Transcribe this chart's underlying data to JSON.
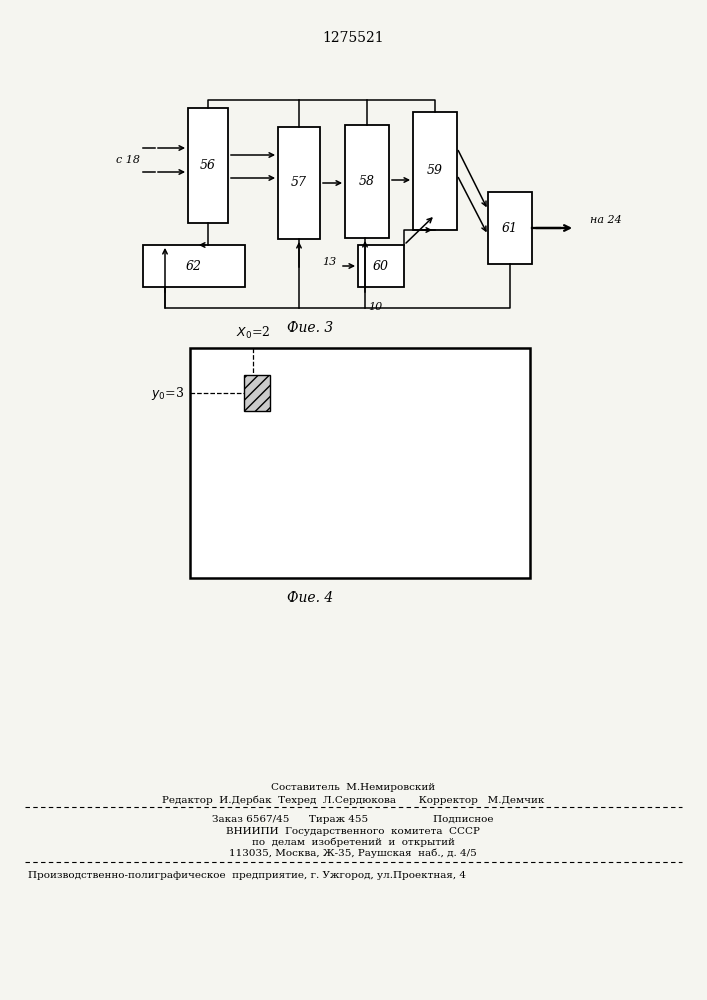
{
  "title": "1275521",
  "fig3_label": "Фие. 3",
  "fig4_label": "Фие. 4",
  "bg_color": "#f5f5f0",
  "footer_line1_center": "Составитель  М.Немировский",
  "footer_line2": "Редактор  И.Дербак  Техред  Л.Сердюкова       Корректор   М.Демчик",
  "footer_line3": "Заказ 6567/45      Тираж 455                    Подписное",
  "footer_line4": "ВНИИПИ  Государственного  комитета  СССР",
  "footer_line5": "по  делам  изобретений  и  открытий",
  "footer_line6": "113035, Москва, Ж-35, Раушская  наб., д. 4/5",
  "footer_line7": "Производственно-полиграфическое  предприятие, г. Ужгород, ул.Проектная, 4"
}
